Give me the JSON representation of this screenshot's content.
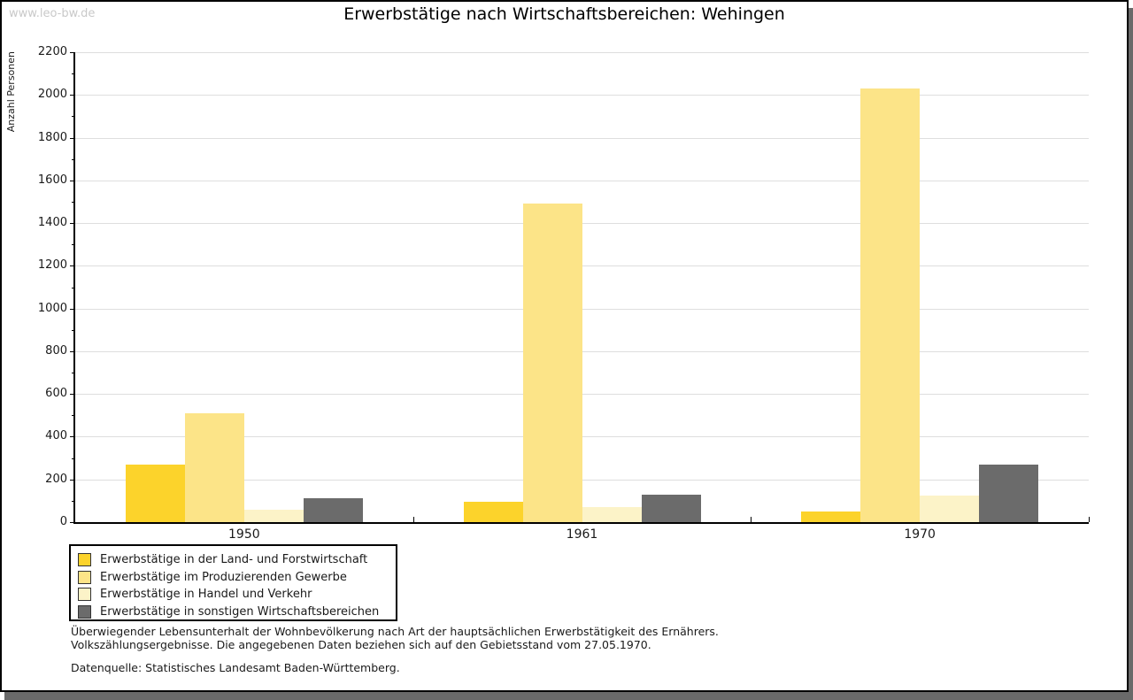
{
  "watermark": "www.leo-bw.de",
  "chart_data": {
    "type": "bar",
    "title": "Erwerbstätige nach Wirtschaftsbereichen: Wehingen",
    "xlabel": "",
    "ylabel": "Anzahl Personen",
    "categories": [
      "1950",
      "1961",
      "1970"
    ],
    "series": [
      {
        "name": "Erwerbstätige in der Land- und Forstwirtschaft",
        "color": "#fcd32b",
        "values": [
          270,
          95,
          50
        ]
      },
      {
        "name": "Erwerbstätige im Produzierenden Gewerbe",
        "color": "#fce488",
        "values": [
          510,
          1490,
          2030
        ]
      },
      {
        "name": "Erwerbstätige in Handel und Verkehr",
        "color": "#fcf3c8",
        "values": [
          60,
          70,
          125
        ]
      },
      {
        "name": "Erwerbstätige in sonstigen Wirtschaftsbereichen",
        "color": "#6b6b6b",
        "values": [
          110,
          130,
          270
        ]
      }
    ],
    "ylim": [
      0,
      2200
    ],
    "ytick_interval": 200,
    "yminortick_interval": 100,
    "grid": true,
    "legend_position": "bottom-left"
  },
  "footnotes": {
    "line1": "Überwiegender Lebensunterhalt der Wohnbevölkerung nach Art der hauptsächlichen Erwerbstätigkeit des Ernährers.",
    "line2": "Volkszählungsergebnisse. Die angegebenen Daten beziehen sich auf den Gebietsstand vom 27.05.1970.",
    "source": "Datenquelle: Statistisches Landesamt Baden-Württemberg."
  }
}
